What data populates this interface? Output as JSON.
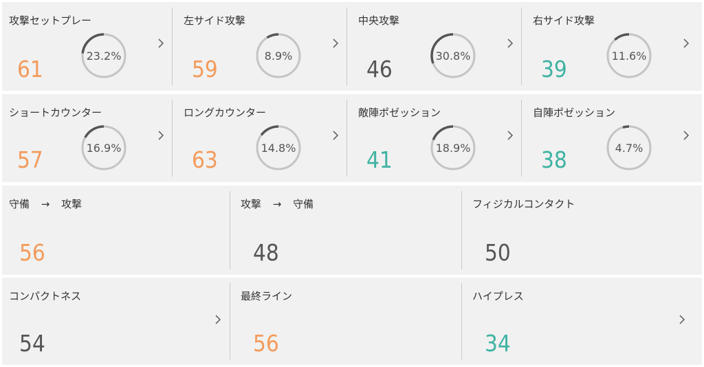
{
  "row1": [
    {
      "title": "攻撃セットプレー",
      "value": "61",
      "color": "orange",
      "pct": "23.2%",
      "frac": 0.232
    },
    {
      "title": "左サイド攻撃",
      "value": "59",
      "color": "orange",
      "pct": "8.9%",
      "frac": 0.089
    },
    {
      "title": "中央攻撃",
      "value": "46",
      "color": "gray",
      "pct": "30.8%",
      "frac": 0.308
    },
    {
      "title": "右サイド攻撃",
      "value": "39",
      "color": "teal",
      "pct": "11.6%",
      "frac": 0.116
    }
  ],
  "row2": [
    {
      "title": "ショートカウンター",
      "value": "57",
      "color": "orange",
      "pct": "16.9%",
      "frac": 0.169
    },
    {
      "title": "ロングカウンター",
      "value": "63",
      "color": "orange",
      "pct": "14.8%",
      "frac": 0.148
    },
    {
      "title": "敵陣ポゼッション",
      "value": "41",
      "color": "teal",
      "pct": "18.9%",
      "frac": 0.189
    },
    {
      "title": "自陣ポゼッション",
      "value": "38",
      "color": "teal",
      "pct": "4.7%",
      "frac": 0.047
    }
  ],
  "row3": [
    {
      "title_a": "守備",
      "arrow": "→",
      "title_b": "攻撃",
      "value": "56",
      "color": "orange"
    },
    {
      "title_a": "攻撃",
      "arrow": "→",
      "title_b": "守備",
      "value": "48",
      "color": "gray"
    },
    {
      "title": "フィジカルコンタクト",
      "value": "50",
      "color": "gray"
    }
  ],
  "row4": [
    {
      "title": "コンパクトネス",
      "value": "54",
      "color": "gray"
    },
    {
      "title": "最終ライン",
      "value": "56",
      "color": "orange"
    },
    {
      "title": "ハイプレス",
      "value": "34",
      "color": "teal"
    }
  ],
  "icons": {
    "chevron": "chevron-right-icon"
  },
  "colors": {
    "orange": "#f39b5b",
    "gray": "#555555",
    "teal": "#3fb3a2",
    "ring_track": "#c4c4c4",
    "ring_fill": "#555555"
  }
}
